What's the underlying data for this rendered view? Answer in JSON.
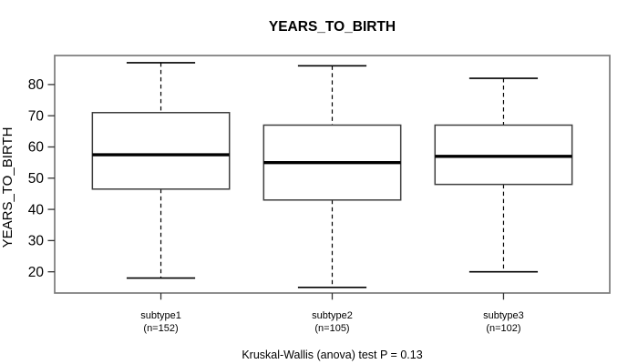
{
  "window": {
    "background": "#ffffff"
  },
  "chart_data": {
    "type": "boxplot",
    "title": "YEARS_TO_BIRTH",
    "ylabel": "YEARS_TO_BIRTH",
    "xlabel": "",
    "annotation": "Kruskal-Wallis (anova) test P = 0.13",
    "categories": [
      "subtype1",
      "subtype2",
      "subtype3"
    ],
    "category_sublabels": [
      "(n=152)",
      "(n=105)",
      "(n=102)"
    ],
    "sample_sizes": [
      152,
      105,
      102
    ],
    "series": [
      {
        "name": "subtype1",
        "n": 152,
        "whisker_low": 18,
        "q1": 46.5,
        "median": 57.5,
        "q3": 71,
        "whisker_high": 87
      },
      {
        "name": "subtype2",
        "n": 105,
        "whisker_low": 15,
        "q1": 43,
        "median": 55,
        "q3": 67,
        "whisker_high": 86
      },
      {
        "name": "subtype3",
        "n": 102,
        "whisker_low": 20,
        "q1": 48,
        "median": 57,
        "q3": 67,
        "whisker_high": 82
      }
    ],
    "yticks": [
      20,
      30,
      40,
      50,
      60,
      70,
      80
    ],
    "ylim": [
      13.2,
      89.3
    ],
    "grid": false,
    "legend": "none"
  },
  "colors": {
    "background": "#ffffff",
    "frame": "#7a7a7a",
    "box_border": "#3f3f3f",
    "box_fill": "#ffffff",
    "whisker": "#000000",
    "median": "#000000",
    "tick": "#333333",
    "text": "#000000"
  }
}
